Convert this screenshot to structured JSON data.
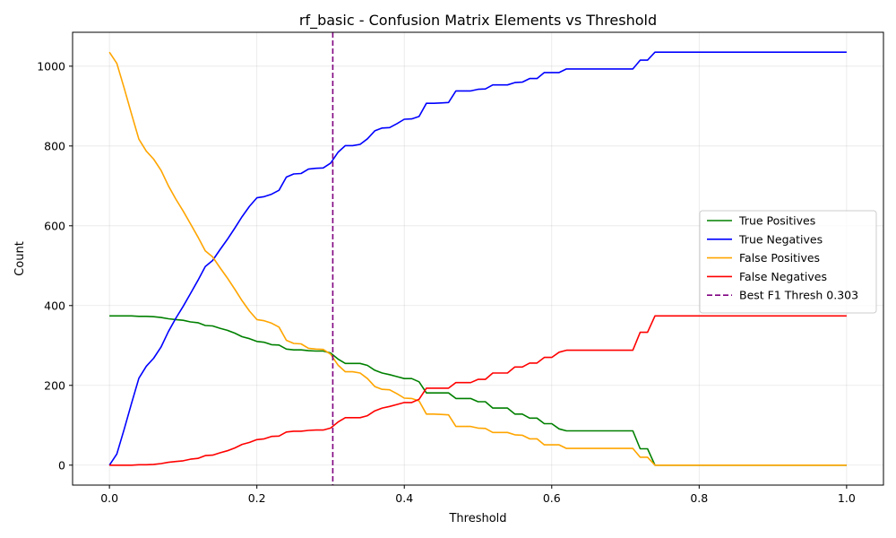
{
  "chart_data": {
    "type": "line",
    "title": "rf_basic - Confusion Matrix Elements vs Threshold",
    "xlabel": "Threshold",
    "ylabel": "Count",
    "xlim": [
      -0.05,
      1.05
    ],
    "ylim": [
      -50,
      1085
    ],
    "xticks": [
      0.0,
      0.2,
      0.4,
      0.6,
      0.8,
      1.0
    ],
    "xtick_labels": [
      "0.0",
      "0.2",
      "0.4",
      "0.6",
      "0.8",
      "1.0"
    ],
    "yticks": [
      0,
      200,
      400,
      600,
      800,
      1000
    ],
    "ytick_labels": [
      "0",
      "200",
      "400",
      "600",
      "800",
      "1000"
    ],
    "grid": true,
    "legend_position": "center-right",
    "series": [
      {
        "name": "True Positives",
        "color": "#008000",
        "x": [
          0,
          0.01,
          0.02,
          0.03,
          0.04,
          0.05,
          0.06,
          0.07,
          0.08,
          0.09,
          0.1,
          0.11,
          0.12,
          0.13,
          0.14,
          0.15,
          0.16,
          0.17,
          0.18,
          0.19,
          0.2,
          0.21,
          0.22,
          0.23,
          0.24,
          0.25,
          0.26,
          0.27,
          0.28,
          0.29,
          0.3,
          0.31,
          0.32,
          0.33,
          0.34,
          0.35,
          0.36,
          0.37,
          0.38,
          0.39,
          0.4,
          0.41,
          0.42,
          0.43,
          0.44,
          0.45,
          0.46,
          0.47,
          0.48,
          0.49,
          0.5,
          0.51,
          0.52,
          0.53,
          0.54,
          0.55,
          0.56,
          0.57,
          0.58,
          0.59,
          0.6,
          0.61,
          0.62,
          0.63,
          0.64,
          0.65,
          0.66,
          0.67,
          0.68,
          0.69,
          0.7,
          0.71,
          0.72,
          0.73,
          0.74,
          1.0
        ],
        "y": [
          374,
          374,
          374,
          374,
          373,
          373,
          372,
          370,
          367,
          365,
          363,
          359,
          357,
          350,
          349,
          343,
          338,
          331,
          322,
          317,
          310,
          308,
          302,
          301,
          291,
          289,
          289,
          287,
          286,
          286,
          281,
          266,
          255,
          255,
          255,
          250,
          238,
          231,
          227,
          222,
          217,
          217,
          209,
          181,
          181,
          181,
          181,
          167,
          167,
          167,
          159,
          159,
          143,
          143,
          143,
          128,
          128,
          118,
          118,
          104,
          104,
          91,
          86,
          86,
          86,
          86,
          86,
          86,
          86,
          86,
          86,
          86,
          41,
          41,
          0,
          0
        ]
      },
      {
        "name": "True Negatives",
        "color": "#0000ff",
        "x": [
          0,
          0.01,
          0.02,
          0.03,
          0.04,
          0.05,
          0.06,
          0.07,
          0.08,
          0.09,
          0.1,
          0.11,
          0.12,
          0.13,
          0.14,
          0.15,
          0.16,
          0.17,
          0.18,
          0.19,
          0.2,
          0.21,
          0.22,
          0.23,
          0.24,
          0.25,
          0.26,
          0.27,
          0.28,
          0.29,
          0.3,
          0.31,
          0.32,
          0.33,
          0.34,
          0.35,
          0.36,
          0.37,
          0.38,
          0.39,
          0.4,
          0.41,
          0.42,
          0.43,
          0.44,
          0.45,
          0.46,
          0.47,
          0.48,
          0.49,
          0.5,
          0.51,
          0.52,
          0.53,
          0.54,
          0.55,
          0.56,
          0.57,
          0.58,
          0.59,
          0.6,
          0.61,
          0.62,
          0.63,
          0.64,
          0.65,
          0.66,
          0.67,
          0.68,
          0.69,
          0.7,
          0.71,
          0.72,
          0.73,
          0.74,
          1.0
        ],
        "y": [
          0,
          28,
          90,
          155,
          218,
          248,
          268,
          296,
          335,
          368,
          398,
          430,
          463,
          498,
          513,
          540,
          566,
          594,
          623,
          649,
          670,
          673,
          679,
          689,
          722,
          730,
          731,
          742,
          744,
          745,
          757,
          784,
          801,
          801,
          804,
          818,
          838,
          845,
          846,
          856,
          867,
          868,
          874,
          907,
          907,
          908,
          909,
          938,
          938,
          938,
          942,
          943,
          953,
          953,
          953,
          959,
          960,
          969,
          969,
          984,
          984,
          984,
          993,
          993,
          993,
          993,
          993,
          993,
          993,
          993,
          993,
          993,
          1015,
          1015,
          1035,
          1035
        ]
      },
      {
        "name": "False Positives",
        "color": "#ffa500",
        "x": [
          0,
          0.01,
          0.02,
          0.03,
          0.04,
          0.05,
          0.06,
          0.07,
          0.08,
          0.09,
          0.1,
          0.11,
          0.12,
          0.13,
          0.14,
          0.15,
          0.16,
          0.17,
          0.18,
          0.19,
          0.2,
          0.21,
          0.22,
          0.23,
          0.24,
          0.25,
          0.26,
          0.27,
          0.28,
          0.29,
          0.3,
          0.31,
          0.32,
          0.33,
          0.34,
          0.35,
          0.36,
          0.37,
          0.38,
          0.39,
          0.4,
          0.41,
          0.42,
          0.43,
          0.44,
          0.45,
          0.46,
          0.47,
          0.48,
          0.49,
          0.5,
          0.51,
          0.52,
          0.53,
          0.54,
          0.55,
          0.56,
          0.57,
          0.58,
          0.59,
          0.6,
          0.61,
          0.62,
          0.63,
          0.64,
          0.65,
          0.66,
          0.67,
          0.68,
          0.69,
          0.7,
          0.71,
          0.72,
          0.73,
          0.74,
          1.0
        ],
        "y": [
          1035,
          1007,
          945,
          880,
          817,
          787,
          767,
          739,
          700,
          667,
          637,
          605,
          572,
          537,
          522,
          495,
          469,
          441,
          412,
          386,
          365,
          362,
          356,
          346,
          313,
          305,
          304,
          293,
          291,
          290,
          278,
          251,
          234,
          234,
          231,
          217,
          197,
          190,
          189,
          179,
          168,
          167,
          161,
          128,
          128,
          127,
          126,
          97,
          97,
          97,
          93,
          92,
          82,
          82,
          82,
          76,
          75,
          66,
          66,
          51,
          51,
          51,
          42,
          42,
          42,
          42,
          42,
          42,
          42,
          42,
          42,
          42,
          20,
          20,
          0,
          0
        ]
      },
      {
        "name": "False Negatives",
        "color": "#ff0000",
        "x": [
          0,
          0.01,
          0.02,
          0.03,
          0.04,
          0.05,
          0.06,
          0.07,
          0.08,
          0.09,
          0.1,
          0.11,
          0.12,
          0.13,
          0.14,
          0.15,
          0.16,
          0.17,
          0.18,
          0.19,
          0.2,
          0.21,
          0.22,
          0.23,
          0.24,
          0.25,
          0.26,
          0.27,
          0.28,
          0.29,
          0.3,
          0.31,
          0.32,
          0.33,
          0.34,
          0.35,
          0.36,
          0.37,
          0.38,
          0.39,
          0.4,
          0.41,
          0.42,
          0.43,
          0.44,
          0.45,
          0.46,
          0.47,
          0.48,
          0.49,
          0.5,
          0.51,
          0.52,
          0.53,
          0.54,
          0.55,
          0.56,
          0.57,
          0.58,
          0.59,
          0.6,
          0.61,
          0.62,
          0.63,
          0.64,
          0.65,
          0.66,
          0.67,
          0.68,
          0.69,
          0.7,
          0.71,
          0.72,
          0.73,
          0.74,
          1.0
        ],
        "y": [
          0,
          0,
          0,
          0,
          1,
          1,
          2,
          4,
          7,
          9,
          11,
          15,
          17,
          24,
          25,
          31,
          36,
          43,
          52,
          57,
          64,
          66,
          72,
          73,
          83,
          85,
          85,
          87,
          88,
          88,
          93,
          108,
          119,
          119,
          119,
          124,
          136,
          143,
          147,
          152,
          157,
          157,
          165,
          193,
          193,
          193,
          193,
          207,
          207,
          207,
          215,
          215,
          231,
          231,
          231,
          246,
          246,
          256,
          256,
          270,
          270,
          283,
          288,
          288,
          288,
          288,
          288,
          288,
          288,
          288,
          288,
          288,
          333,
          333,
          374,
          374
        ]
      }
    ],
    "reference_line": {
      "name": "Best F1 Thresh 0.303",
      "x": 0.303,
      "color": "#800080",
      "style": "dashed"
    }
  }
}
